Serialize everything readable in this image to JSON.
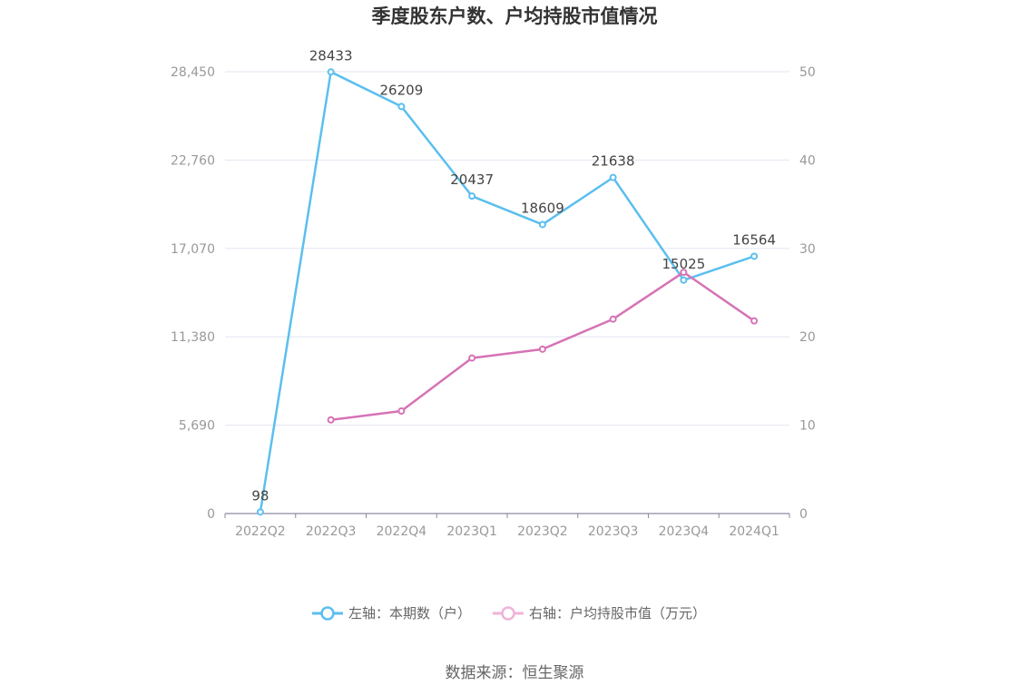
{
  "chart_data": {
    "type": "line",
    "title": "季度股东户数、户均持股市值情况",
    "categories": [
      "2022Q2",
      "2022Q3",
      "2022Q4",
      "2023Q1",
      "2023Q2",
      "2023Q3",
      "2023Q4",
      "2024Q1"
    ],
    "left_axis": {
      "min": 0,
      "max": 28450,
      "ticks": [
        "0",
        "5,690",
        "11,380",
        "17,070",
        "22,760",
        "28,450"
      ]
    },
    "right_axis": {
      "min": 0,
      "max": 50,
      "ticks": [
        "0",
        "10",
        "20",
        "30",
        "40",
        "50"
      ]
    },
    "grid": true,
    "legend_position": "bottom",
    "series": [
      {
        "name": "左轴：本期数（户）",
        "axis": "left",
        "color": "#5bbfee",
        "values": [
          98,
          28433,
          26209,
          20437,
          18609,
          21638,
          15025,
          16564
        ],
        "labels": [
          "98",
          "28433",
          "26209",
          "20437",
          "18609",
          "21638",
          "15025",
          "16564"
        ]
      },
      {
        "name": "右轴：户均持股市值（万元）",
        "axis": "right",
        "color": "#d673b5",
        "values": [
          null,
          10.6,
          11.6,
          17.6,
          18.6,
          22.0,
          27.3,
          21.8
        ]
      }
    ]
  },
  "source": "数据来源：恒生聚源"
}
